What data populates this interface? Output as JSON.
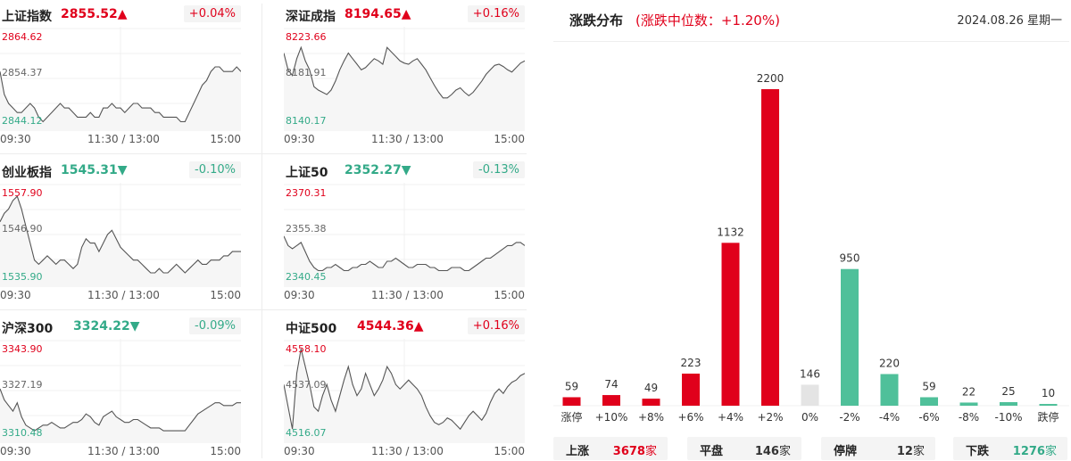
{
  "indices": [
    {
      "name": "上证指数",
      "value": "2855.52▲",
      "change": "+0.04%",
      "dir": "up",
      "max": "2864.62",
      "mid": "2854.37",
      "min": "2844.12",
      "points": [
        2856,
        2851,
        2849,
        2848,
        2847,
        2847,
        2848,
        2849,
        2848,
        2846,
        2845,
        2846,
        2847,
        2848,
        2849,
        2848,
        2848,
        2847,
        2846,
        2846,
        2846,
        2847,
        2846,
        2846,
        2848,
        2848,
        2849,
        2848,
        2848,
        2847,
        2848,
        2849,
        2849,
        2848,
        2848,
        2848,
        2847,
        2847,
        2846,
        2846,
        2846,
        2846,
        2845,
        2845,
        2847,
        2849,
        2851,
        2853,
        2854,
        2856,
        2857,
        2857,
        2856,
        2856,
        2856,
        2857,
        2856
      ]
    },
    {
      "name": "深证成指",
      "value": "8194.65▲",
      "change": "+0.16%",
      "dir": "up",
      "max": "8223.66",
      "mid": "8181.91",
      "min": "8140.17",
      "points": [
        8205,
        8190,
        8185,
        8200,
        8210,
        8198,
        8190,
        8175,
        8172,
        8170,
        8168,
        8172,
        8180,
        8190,
        8198,
        8205,
        8200,
        8195,
        8190,
        8192,
        8196,
        8200,
        8198,
        8195,
        8210,
        8206,
        8202,
        8198,
        8196,
        8195,
        8198,
        8200,
        8195,
        8190,
        8183,
        8176,
        8170,
        8165,
        8165,
        8168,
        8172,
        8174,
        8170,
        8167,
        8170,
        8175,
        8180,
        8186,
        8190,
        8194,
        8195,
        8193,
        8190,
        8188,
        8192,
        8196,
        8198
      ]
    },
    {
      "name": "创业板指",
      "value": "1545.31▼",
      "change": "-0.10%",
      "dir": "down",
      "max": "1557.90",
      "mid": "1546.90",
      "min": "1535.90",
      "points": [
        1550,
        1552,
        1553,
        1555,
        1556,
        1553,
        1549,
        1545,
        1541,
        1540,
        1541,
        1542,
        1541,
        1540,
        1541,
        1541,
        1540,
        1539,
        1540,
        1544,
        1546,
        1545,
        1545,
        1543,
        1545,
        1547,
        1548,
        1546,
        1544,
        1543,
        1542,
        1541,
        1541,
        1540,
        1539,
        1538,
        1538,
        1539,
        1538,
        1538,
        1539,
        1540,
        1539,
        1538,
        1539,
        1540,
        1541,
        1540,
        1540,
        1541,
        1541,
        1541,
        1542,
        1542,
        1543,
        1543,
        1543
      ]
    },
    {
      "name": "上证50",
      "value": "2352.27▼",
      "change": "-0.13%",
      "dir": "down",
      "max": "2370.31",
      "mid": "2355.38",
      "min": "2340.45",
      "points": [
        2355,
        2352,
        2351,
        2352,
        2353,
        2350,
        2347,
        2345,
        2344,
        2344,
        2345,
        2345,
        2346,
        2345,
        2344,
        2344,
        2345,
        2345,
        2346,
        2346,
        2347,
        2346,
        2345,
        2345,
        2347,
        2347,
        2348,
        2347,
        2346,
        2345,
        2345,
        2346,
        2346,
        2346,
        2345,
        2345,
        2344,
        2344,
        2344,
        2345,
        2345,
        2345,
        2344,
        2344,
        2345,
        2346,
        2347,
        2348,
        2348,
        2349,
        2350,
        2351,
        2352,
        2352,
        2353,
        2353,
        2352
      ]
    },
    {
      "name": "沪深300",
      "value": "3324.22▼",
      "change": "-0.09%",
      "dir": "down",
      "max": "3343.90",
      "mid": "3327.19",
      "min": "3310.48",
      "points": [
        3328,
        3324,
        3322,
        3320,
        3323,
        3318,
        3315,
        3314,
        3313,
        3314,
        3315,
        3315,
        3316,
        3315,
        3314,
        3314,
        3315,
        3316,
        3316,
        3317,
        3319,
        3318,
        3316,
        3315,
        3318,
        3319,
        3320,
        3318,
        3317,
        3316,
        3316,
        3317,
        3317,
        3316,
        3315,
        3314,
        3314,
        3314,
        3313,
        3313,
        3313,
        3313,
        3313,
        3313,
        3315,
        3317,
        3319,
        3320,
        3321,
        3322,
        3323,
        3323,
        3322,
        3322,
        3322,
        3323,
        3323
      ]
    },
    {
      "name": "中证500",
      "value": "4544.36▲",
      "change": "+0.16%",
      "dir": "up",
      "max": "4558.10",
      "mid": "4537.09",
      "min": "4516.07",
      "points": [
        4540,
        4530,
        4520,
        4545,
        4556,
        4548,
        4540,
        4530,
        4528,
        4535,
        4540,
        4533,
        4528,
        4535,
        4542,
        4548,
        4540,
        4535,
        4538,
        4545,
        4540,
        4535,
        4538,
        4542,
        4548,
        4545,
        4540,
        4538,
        4540,
        4542,
        4540,
        4538,
        4535,
        4530,
        4526,
        4523,
        4522,
        4523,
        4525,
        4524,
        4522,
        4520,
        4523,
        4526,
        4528,
        4526,
        4524,
        4527,
        4532,
        4536,
        4538,
        4536,
        4539,
        4541,
        4542,
        4544,
        4545
      ]
    }
  ],
  "time_labels": {
    "start": "09:30",
    "mid": "11:30 / 13:00",
    "end": "15:00"
  },
  "distribution": {
    "title": "涨跌分布",
    "subtitle": "(涨跌中位数：+1.20%)",
    "date": "2024.08.26 星期一",
    "chart_data": {
      "type": "bar",
      "categories": [
        "涨停",
        "+10%",
        "+8%",
        "+6%",
        "+4%",
        "+2%",
        "0%",
        "-2%",
        "-4%",
        "-6%",
        "-8%",
        "-10%",
        "跌停"
      ],
      "values": [
        59,
        74,
        49,
        223,
        1132,
        2200,
        146,
        950,
        220,
        59,
        22,
        25,
        10
      ],
      "value_labels": [
        "59",
        "74",
        "49",
        "223",
        "1132",
        "2200",
        "146",
        "950",
        "220",
        "59",
        "22",
        "25",
        "10"
      ],
      "colors": [
        "#e0001b",
        "#e0001b",
        "#e0001b",
        "#e0001b",
        "#e0001b",
        "#e0001b",
        "#e4e4e4",
        "#4fc09a",
        "#4fc09a",
        "#4fc09a",
        "#4fc09a",
        "#4fc09a",
        "#4fc09a"
      ],
      "ylim": [
        0,
        2200
      ]
    },
    "summary": [
      {
        "label": "上涨",
        "value": "3678",
        "unit": "家",
        "color": "#e0001b"
      },
      {
        "label": "平盘",
        "value": "146",
        "unit": "家",
        "color": "#333333"
      },
      {
        "label": "停牌",
        "value": "12",
        "unit": "家",
        "color": "#333333"
      },
      {
        "label": "下跌",
        "value": "1276",
        "unit": "家",
        "color": "#33aa88"
      }
    ]
  },
  "colors": {
    "up": "#e0001b",
    "down": "#33aa88",
    "line": "#555555"
  }
}
